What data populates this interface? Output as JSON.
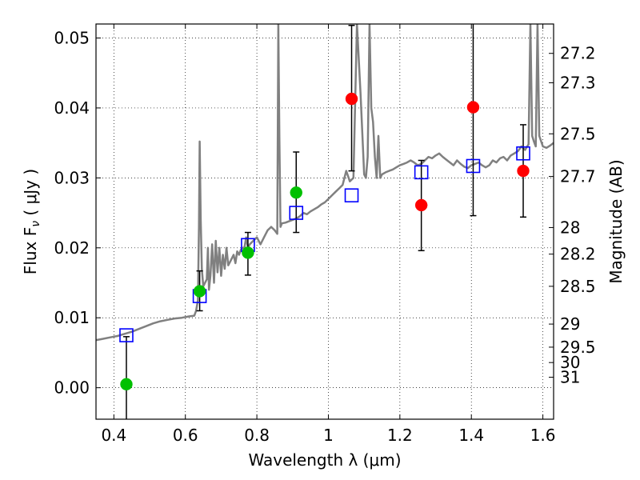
{
  "chart_data": {
    "type": "scatter",
    "title": "",
    "xlabel": "Wavelength  λ (μm)",
    "ylabel": "Flux  F",
    "ylabel_sub": "ν",
    "ylabel_unit": "  ( μJy )",
    "y2label": "Magnitude (AB)",
    "xlim": [
      0.35,
      1.63
    ],
    "ylim": [
      -0.0045,
      0.052
    ],
    "grid": true,
    "x_ticks": [
      0.4,
      0.6,
      0.8,
      1.0,
      1.2,
      1.4,
      1.6
    ],
    "x_tick_labels": [
      "0.4",
      "0.6",
      "0.8",
      "1",
      "1.2",
      "1.4",
      "1.6"
    ],
    "y_ticks": [
      0.0,
      0.01,
      0.02,
      0.03,
      0.04,
      0.05
    ],
    "y_tick_labels": [
      "0.00",
      "0.01",
      "0.02",
      "0.03",
      "0.04",
      "0.05"
    ],
    "mag_ticks": [
      {
        "label": "27.2",
        "flux": 0.0478
      },
      {
        "label": "27.3",
        "flux": 0.0436
      },
      {
        "label": "27.5",
        "flux": 0.0363
      },
      {
        "label": "27.7",
        "flux": 0.0302
      },
      {
        "label": "28",
        "flux": 0.0229
      },
      {
        "label": "28.2",
        "flux": 0.0191
      },
      {
        "label": "28.5",
        "flux": 0.0145
      },
      {
        "label": "29",
        "flux": 0.0091
      },
      {
        "label": "29.5",
        "flux": 0.0058
      },
      {
        "label": "30",
        "flux": 0.0036
      },
      {
        "label": "31",
        "flux": 0.0015
      }
    ],
    "model_spectrum": {
      "color": "#808080",
      "x": [
        0.35,
        0.37,
        0.39,
        0.41,
        0.43,
        0.45,
        0.47,
        0.49,
        0.51,
        0.53,
        0.55,
        0.57,
        0.59,
        0.61,
        0.625,
        0.63,
        0.635,
        0.638,
        0.64,
        0.643,
        0.646,
        0.65,
        0.655,
        0.66,
        0.663,
        0.666,
        0.67,
        0.675,
        0.68,
        0.685,
        0.69,
        0.695,
        0.7,
        0.705,
        0.71,
        0.715,
        0.72,
        0.725,
        0.73,
        0.735,
        0.74,
        0.745,
        0.75,
        0.755,
        0.76,
        0.765,
        0.77,
        0.775,
        0.78,
        0.79,
        0.8,
        0.81,
        0.82,
        0.83,
        0.84,
        0.85,
        0.857,
        0.86,
        0.863,
        0.866,
        0.87,
        0.88,
        0.89,
        0.9,
        0.91,
        0.92,
        0.93,
        0.94,
        0.95,
        0.96,
        0.97,
        0.98,
        0.99,
        1.0,
        1.01,
        1.02,
        1.03,
        1.04,
        1.05,
        1.06,
        1.07,
        1.08,
        1.09,
        1.1,
        1.105,
        1.11,
        1.115,
        1.12,
        1.125,
        1.13,
        1.135,
        1.14,
        1.145,
        1.15,
        1.16,
        1.17,
        1.18,
        1.19,
        1.2,
        1.21,
        1.22,
        1.23,
        1.24,
        1.25,
        1.26,
        1.27,
        1.28,
        1.29,
        1.3,
        1.31,
        1.32,
        1.33,
        1.34,
        1.35,
        1.36,
        1.37,
        1.38,
        1.39,
        1.4,
        1.41,
        1.42,
        1.43,
        1.44,
        1.45,
        1.46,
        1.47,
        1.48,
        1.49,
        1.5,
        1.51,
        1.52,
        1.53,
        1.54,
        1.55,
        1.56,
        1.565,
        1.57,
        1.575,
        1.58,
        1.585,
        1.59,
        1.6,
        1.61,
        1.62,
        1.63
      ],
      "y": [
        0.0068,
        0.007,
        0.0072,
        0.0074,
        0.0077,
        0.008,
        0.0084,
        0.0088,
        0.0092,
        0.0095,
        0.0097,
        0.0099,
        0.01,
        0.0102,
        0.0103,
        0.011,
        0.0125,
        0.023,
        0.0352,
        0.024,
        0.017,
        0.0145,
        0.015,
        0.0155,
        0.02,
        0.014,
        0.016,
        0.0205,
        0.015,
        0.021,
        0.0165,
        0.02,
        0.016,
        0.019,
        0.017,
        0.02,
        0.0175,
        0.018,
        0.0185,
        0.019,
        0.0178,
        0.0195,
        0.019,
        0.0197,
        0.02,
        0.02,
        0.0215,
        0.02,
        0.0205,
        0.021,
        0.0215,
        0.0205,
        0.0215,
        0.0225,
        0.023,
        0.0225,
        0.022,
        0.052,
        0.036,
        0.023,
        0.0235,
        0.0236,
        0.0238,
        0.024,
        0.0242,
        0.0245,
        0.025,
        0.0248,
        0.0252,
        0.0255,
        0.0258,
        0.0262,
        0.0265,
        0.027,
        0.0275,
        0.028,
        0.0285,
        0.029,
        0.031,
        0.0295,
        0.03,
        0.052,
        0.042,
        0.0305,
        0.03,
        0.033,
        0.052,
        0.04,
        0.038,
        0.033,
        0.03,
        0.036,
        0.03,
        0.0305,
        0.0308,
        0.031,
        0.0312,
        0.0315,
        0.0318,
        0.032,
        0.0322,
        0.0325,
        0.0322,
        0.0318,
        0.032,
        0.0325,
        0.033,
        0.0328,
        0.0332,
        0.0335,
        0.033,
        0.0326,
        0.0322,
        0.0318,
        0.0325,
        0.032,
        0.0316,
        0.0314,
        0.0318,
        0.032,
        0.0322,
        0.0318,
        0.0315,
        0.0318,
        0.0325,
        0.0322,
        0.0328,
        0.033,
        0.0325,
        0.0332,
        0.0335,
        0.0338,
        0.0345,
        0.034,
        0.0348,
        0.052,
        0.036,
        0.0352,
        0.0345,
        0.052,
        0.036,
        0.0345,
        0.0343,
        0.0346,
        0.035
      ]
    },
    "series": [
      {
        "kind": "model-photometry",
        "marker": "open-square",
        "color": "#0000ff",
        "x": [
          0.435,
          0.64,
          0.775,
          0.91,
          1.065,
          1.26,
          1.405,
          1.545
        ],
        "y": [
          0.0075,
          0.0131,
          0.0204,
          0.025,
          0.0275,
          0.0308,
          0.0317,
          0.0335
        ]
      },
      {
        "kind": "observed-detections",
        "marker": "filled-circle",
        "color": "#00c000",
        "x": [
          0.435,
          0.64,
          0.775,
          0.91
        ],
        "y": [
          0.0005,
          0.0138,
          0.0193,
          0.0279
        ],
        "yerr_low": [
          0.0055,
          0.0028,
          0.0032,
          0.0057
        ],
        "yerr_high": [
          0.0068,
          0.0029,
          0.0029,
          0.0058
        ]
      },
      {
        "kind": "observed-nondetections",
        "marker": "filled-circle",
        "color": "#ff0000",
        "x": [
          1.065,
          1.26,
          1.405,
          1.545
        ],
        "y": [
          0.0413,
          0.0261,
          0.0401,
          0.031
        ],
        "yerr_low": [
          0.0103,
          0.0065,
          0.0155,
          0.0066
        ],
        "yerr_high": [
          0.0105,
          0.0064,
          0.0125,
          0.0066
        ]
      }
    ]
  }
}
